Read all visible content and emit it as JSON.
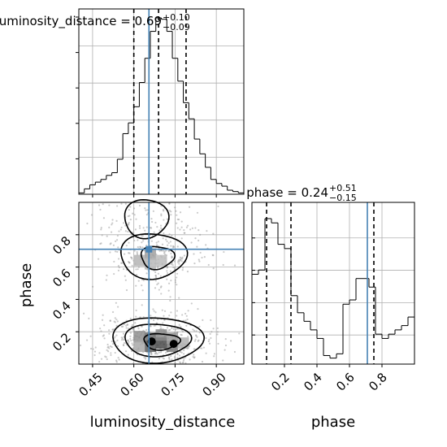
{
  "chart_data": {
    "type": "corner",
    "parameters": [
      "luminosity_distance",
      "phase"
    ],
    "truths": {
      "luminosity_distance": 0.655,
      "phase": 0.71
    },
    "grid": true,
    "panels": [
      {
        "id": "luminosity_distance_hist",
        "type": "histogram-step",
        "title": "luminosity_distance = 0.69",
        "title_sup": "+0.10",
        "title_sub": "−0.09",
        "xlim": [
          0.4,
          1.0
        ],
        "quantiles": [
          0.6,
          0.69,
          0.79
        ],
        "bin_edges": [
          0.4,
          0.42,
          0.44,
          0.46,
          0.48,
          0.5,
          0.52,
          0.54,
          0.56,
          0.58,
          0.6,
          0.62,
          0.64,
          0.66,
          0.68,
          0.7,
          0.72,
          0.74,
          0.76,
          0.78,
          0.8,
          0.82,
          0.84,
          0.86,
          0.88,
          0.9,
          0.92,
          0.94,
          0.96,
          0.98,
          1.0
        ],
        "counts": [
          1,
          4,
          7,
          9,
          11,
          14,
          16,
          26,
          45,
          53,
          65,
          83,
          101,
          121,
          131,
          130,
          121,
          101,
          84,
          68,
          56,
          41,
          30,
          20,
          11,
          8,
          6,
          3,
          2,
          1
        ]
      },
      {
        "id": "phase_hist",
        "type": "histogram-step",
        "title": "phase = 0.24",
        "title_sup": "+0.51",
        "title_sub": "−0.15",
        "xlim": [
          0.0,
          1.0
        ],
        "xticks": [
          0.2,
          0.4,
          0.6,
          0.8
        ],
        "xlabel": "phase",
        "quantiles": [
          0.09,
          0.24,
          0.75
        ],
        "bin_edges": [
          0.0,
          0.04,
          0.08,
          0.12,
          0.16,
          0.2,
          0.24,
          0.28,
          0.32,
          0.36,
          0.4,
          0.44,
          0.48,
          0.52,
          0.56,
          0.6,
          0.64,
          0.68,
          0.72,
          0.76,
          0.8,
          0.84,
          0.88,
          0.92,
          0.96,
          1.0
        ],
        "counts": [
          10.5,
          11.0,
          17.0,
          16.5,
          14.0,
          13.5,
          8.0,
          6.0,
          5.0,
          4.0,
          3.0,
          1.0,
          0.7,
          1.2,
          7.0,
          7.5,
          10.0,
          10.0,
          9.0,
          3.5,
          3.0,
          3.5,
          4.0,
          4.5,
          5.5
        ]
      },
      {
        "id": "joint_phase_vs_luminosity_distance",
        "type": "2d-density-contour",
        "xlim": [
          0.4,
          1.0
        ],
        "ylim": [
          0.0,
          1.0
        ],
        "xticks": [
          0.45,
          0.6,
          0.75,
          0.9
        ],
        "yticks": [
          0.2,
          0.4,
          0.6,
          0.8
        ],
        "xlabel": "luminosity_distance",
        "ylabel": "phase",
        "modes": [
          {
            "center": [
              0.68,
              0.14
            ],
            "spread": [
              0.07,
              0.06
            ]
          },
          {
            "center": [
              0.67,
              0.66
            ],
            "spread": [
              0.06,
              0.07
            ]
          },
          {
            "center": [
              0.65,
              0.87
            ],
            "spread": [
              0.06,
              0.08
            ]
          }
        ]
      }
    ]
  },
  "labels": {
    "title1_main": "luminosity_distance = 0.69",
    "title1_sup": "+0.10",
    "title1_sub": "−0.09",
    "title2_main": "phase = 0.24",
    "title2_sup": "+0.51",
    "title2_sub": "−0.15",
    "xlabel_left": "luminosity_distance",
    "xlabel_right": "phase",
    "ylabel": "phase",
    "ld_ticks": [
      "0.45",
      "0.60",
      "0.75",
      "0.90"
    ],
    "ph_ticks": [
      "0.2",
      "0.4",
      "0.6",
      "0.8"
    ]
  },
  "colors": {
    "truth": "#4682b4",
    "grid": "#b0b0b0",
    "line": "#000000",
    "scatter": "#8c8c8c"
  }
}
